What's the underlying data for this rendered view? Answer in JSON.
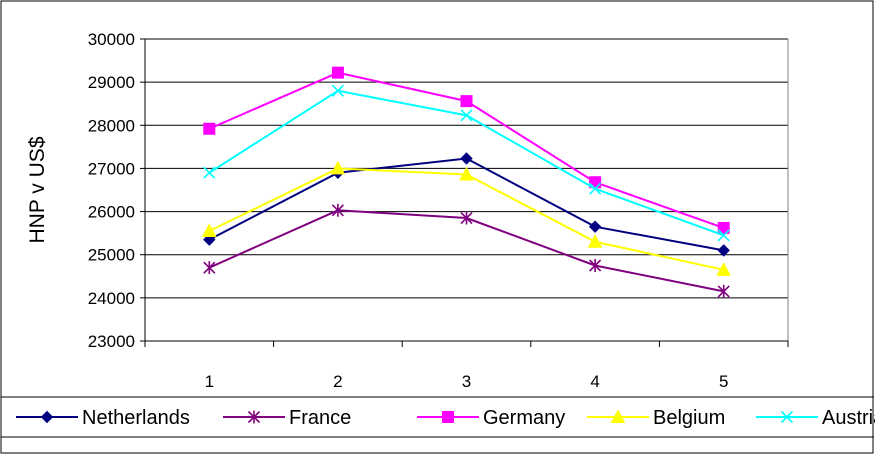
{
  "chart_data": {
    "type": "line",
    "title": "",
    "xlabel": "",
    "ylabel": "HNP v US$",
    "x": [
      1,
      2,
      3,
      4,
      5
    ],
    "ylim": [
      23000,
      30000
    ],
    "yticks": [
      23000,
      24000,
      25000,
      26000,
      27000,
      28000,
      29000,
      30000
    ],
    "grid": true,
    "legend_position": "bottom",
    "series": [
      {
        "name": "Netherlands",
        "color": "#000080",
        "marker": "diamond",
        "values": [
          25350,
          26900,
          27230,
          25650,
          25100
        ]
      },
      {
        "name": "France",
        "color": "#800080",
        "marker": "asterisk",
        "values": [
          24700,
          26030,
          25850,
          24750,
          24150
        ]
      },
      {
        "name": "Germany",
        "color": "#ff00ff",
        "marker": "square",
        "values": [
          27920,
          29220,
          28560,
          26680,
          25620
        ]
      },
      {
        "name": "Belgium",
        "color": "#ffff00",
        "marker": "triangle",
        "values": [
          25550,
          27000,
          26860,
          25300,
          24650
        ]
      },
      {
        "name": "Austria",
        "color": "#00ffff",
        "marker": "x",
        "values": [
          26900,
          28800,
          28230,
          26530,
          25450
        ]
      }
    ]
  }
}
